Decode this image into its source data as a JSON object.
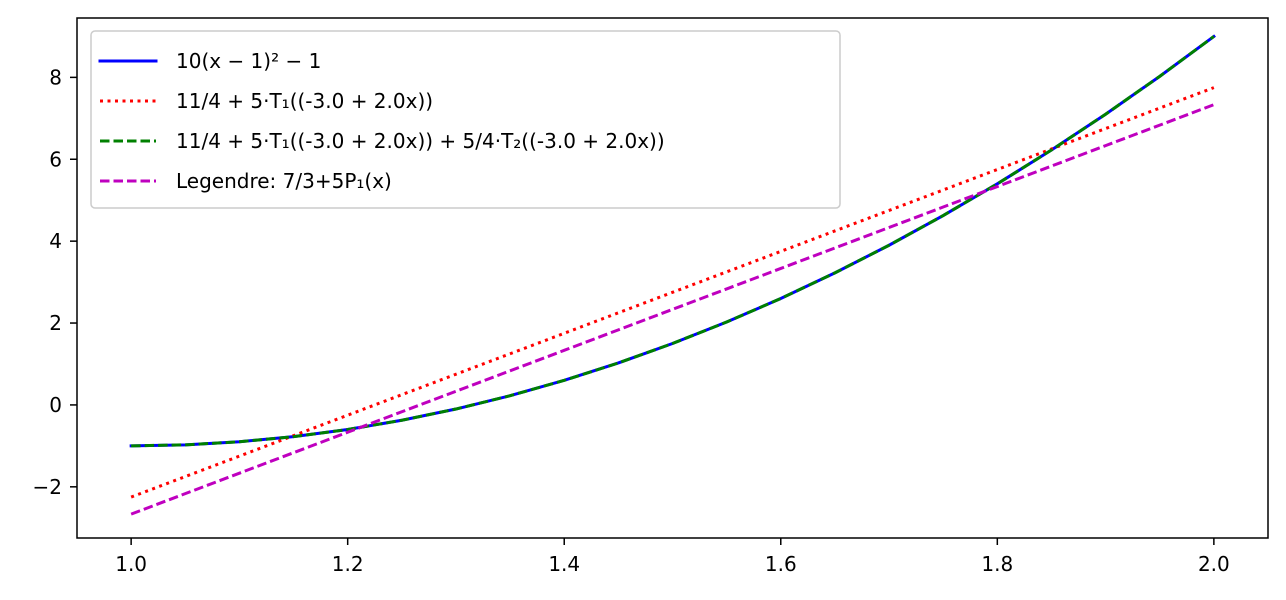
{
  "chart_data": {
    "type": "line",
    "title": "",
    "xlabel": "",
    "ylabel": "",
    "xlim": [
      0.95,
      2.05
    ],
    "ylim": [
      -3.25,
      9.45
    ],
    "grid": false,
    "legend_position": "upper-left",
    "x_ticks": [
      {
        "value": 1.0,
        "label": "1.0"
      },
      {
        "value": 1.2,
        "label": "1.2"
      },
      {
        "value": 1.4,
        "label": "1.4"
      },
      {
        "value": 1.6,
        "label": "1.6"
      },
      {
        "value": 1.8,
        "label": "1.8"
      },
      {
        "value": 2.0,
        "label": "2.0"
      }
    ],
    "y_ticks": [
      {
        "value": -2,
        "label": "−2"
      },
      {
        "value": 0,
        "label": "0"
      },
      {
        "value": 2,
        "label": "2"
      },
      {
        "value": 4,
        "label": "4"
      },
      {
        "value": 6,
        "label": "6"
      },
      {
        "value": 8,
        "label": "8"
      }
    ],
    "x": [
      1.0,
      1.05,
      1.1,
      1.15,
      1.2,
      1.25,
      1.3,
      1.35,
      1.4,
      1.45,
      1.5,
      1.55,
      1.6,
      1.65,
      1.7,
      1.75,
      1.8,
      1.85,
      1.9,
      1.95,
      2.0
    ],
    "series": [
      {
        "name": "10(x − 1)² − 1",
        "color": "#0000ff",
        "dash": "solid",
        "values": [
          -1.0,
          -0.975,
          -0.9,
          -0.775,
          -0.6,
          -0.375,
          -0.1,
          0.225,
          0.6,
          1.025,
          1.5,
          2.025,
          2.6,
          3.225,
          3.9,
          4.625,
          5.4,
          6.225,
          7.1,
          8.025,
          9.0
        ]
      },
      {
        "name": "11/4 + 5·T₁((-3.0 + 2.0x))",
        "color": "#ff0000",
        "dash": "dotted",
        "values": [
          -2.25,
          -1.75,
          -1.25,
          -0.75,
          -0.25,
          0.25,
          0.75,
          1.25,
          1.75,
          2.25,
          2.75,
          3.25,
          3.75,
          4.25,
          4.75,
          5.25,
          5.75,
          6.25,
          6.75,
          7.25,
          7.75
        ]
      },
      {
        "name": "11/4 + 5·T₁((-3.0 + 2.0x)) + 5/4·T₂((-3.0 + 2.0x))",
        "color": "#008000",
        "dash": "dashed",
        "values": [
          -1.0,
          -0.975,
          -0.9,
          -0.775,
          -0.6,
          -0.375,
          -0.1,
          0.225,
          0.6,
          1.025,
          1.5,
          2.025,
          2.6,
          3.225,
          3.9,
          4.625,
          5.4,
          6.225,
          7.1,
          8.025,
          9.0
        ]
      },
      {
        "name": "Legendre: 7/3+5P₁(x)",
        "color": "#bf00bf",
        "dash": "dashed",
        "values": [
          -2.6667,
          -2.1667,
          -1.6667,
          -1.1667,
          -0.6667,
          -0.1667,
          0.3333,
          0.8333,
          1.3333,
          1.8333,
          2.3333,
          2.8333,
          3.3333,
          3.8333,
          4.3333,
          4.8333,
          5.3333,
          5.8333,
          6.3333,
          6.8333,
          7.3333
        ]
      }
    ]
  }
}
